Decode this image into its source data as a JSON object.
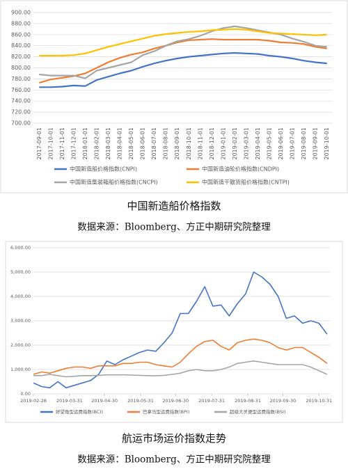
{
  "chart_data": [
    {
      "type": "line",
      "caption": "中国新造船价格指数",
      "source": "数据来源：Bloomberg、方正中期研究院整理",
      "categories": [
        "2017-09-01",
        "2017-10-01",
        "2017-11-01",
        "2017-12-01",
        "2018-01-01",
        "2018-02-01",
        "2018-03-01",
        "2018-04-01",
        "2018-05-01",
        "2018-06-01",
        "2018-07-01",
        "2018-08-01",
        "2018-09-01",
        "2018-10-01",
        "2018-11-01",
        "2018-12-01",
        "2019-01-01",
        "2019-02-01",
        "2019-03-01",
        "2019-04-01",
        "2019-05-01",
        "2019-06-01",
        "2019-07-01",
        "2019-08-01",
        "2019-09-01",
        "2019-10-01"
      ],
      "series": [
        {
          "name": "中国新造船价格指数(CNPI)",
          "color": "#4472c4",
          "values": [
            765,
            765,
            766,
            768,
            767,
            778,
            784,
            790,
            795,
            802,
            808,
            813,
            817,
            820,
            822,
            824,
            826,
            827,
            826,
            825,
            822,
            820,
            817,
            813,
            810,
            808
          ]
        },
        {
          "name": "中国新造油轮价格指数(CNDPI)",
          "color": "#ed7d31",
          "values": [
            773,
            779,
            782,
            785,
            790,
            800,
            810,
            818,
            824,
            828,
            835,
            840,
            846,
            850,
            851,
            852,
            851,
            851,
            851,
            851,
            849,
            846,
            845,
            843,
            838,
            835
          ]
        },
        {
          "name": "中国新造集装箱船价格指数(CNCPI)",
          "color": "#a5a5a5",
          "values": [
            788,
            786,
            786,
            786,
            781,
            795,
            800,
            805,
            810,
            823,
            830,
            840,
            848,
            852,
            858,
            866,
            872,
            875,
            872,
            868,
            864,
            860,
            853,
            847,
            840,
            838
          ]
        },
        {
          "name": "中国新造干散货船价格指数(CNTPI)",
          "color": "#ffc000",
          "values": [
            822,
            822,
            822,
            823,
            826,
            832,
            838,
            843,
            848,
            853,
            858,
            861,
            863,
            865,
            866,
            868,
            869,
            870,
            869,
            866,
            863,
            862,
            861,
            860,
            859,
            860
          ]
        }
      ],
      "ylim": [
        700,
        900
      ],
      "yticks": [
        {
          "value": 700,
          "label": "700.00"
        },
        {
          "value": 720,
          "label": "720.00"
        },
        {
          "value": 740,
          "label": "740.00"
        },
        {
          "value": 760,
          "label": "760.00"
        },
        {
          "value": 780,
          "label": "780.00"
        },
        {
          "value": 800,
          "label": "800.00"
        },
        {
          "value": 820,
          "label": "820.00"
        },
        {
          "value": 840,
          "label": "840.00"
        },
        {
          "value": 860,
          "label": "860.00"
        },
        {
          "value": 880,
          "label": "880.00"
        },
        {
          "value": 900,
          "label": "900.00"
        }
      ],
      "grid": true
    },
    {
      "type": "line",
      "caption": "航运市场运价指数走势",
      "source": "数据来源：Bloomberg、方正中期研究院整理",
      "x": [
        "2019-02-28",
        "2019-03-07",
        "2019-03-14",
        "2019-03-21",
        "2019-03-28",
        "2019-04-04",
        "2019-04-11",
        "2019-04-18",
        "2019-04-25",
        "2019-05-02",
        "2019-05-09",
        "2019-05-16",
        "2019-05-23",
        "2019-05-30",
        "2019-06-06",
        "2019-06-13",
        "2019-06-20",
        "2019-06-27",
        "2019-07-04",
        "2019-07-11",
        "2019-07-18",
        "2019-07-25",
        "2019-08-01",
        "2019-08-08",
        "2019-08-15",
        "2019-08-22",
        "2019-08-29",
        "2019-09-05",
        "2019-09-12",
        "2019-09-19",
        "2019-09-26",
        "2019-10-03",
        "2019-10-10",
        "2019-10-17",
        "2019-10-24",
        "2019-10-31",
        "2019-11-07"
      ],
      "series": [
        {
          "name": "好望角型运费指数(BCI)",
          "color": "#4472c4",
          "values": [
            450,
            300,
            250,
            500,
            250,
            350,
            450,
            550,
            800,
            1350,
            1200,
            1400,
            1550,
            1700,
            1800,
            1750,
            2100,
            2500,
            3300,
            3300,
            3800,
            4400,
            3600,
            3650,
            3200,
            3700,
            4100,
            5000,
            4800,
            4500,
            4000,
            3100,
            3200,
            2900,
            3000,
            2900,
            2450
          ]
        },
        {
          "name": "巴拿马型运费指数(BPI)",
          "color": "#ed7d31",
          "values": [
            800,
            900,
            850,
            950,
            1050,
            1100,
            1100,
            1050,
            1150,
            1150,
            1150,
            1250,
            1250,
            1300,
            1300,
            1200,
            1150,
            1100,
            1300,
            1650,
            1950,
            2150,
            2200,
            1950,
            1800,
            2100,
            2200,
            2250,
            2200,
            2100,
            1900,
            1800,
            1900,
            1900,
            1700,
            1500,
            1250
          ]
        },
        {
          "name": "超级大灵便型运费指数(BSI)",
          "color": "#a5a5a5",
          "values": [
            750,
            750,
            800,
            750,
            700,
            720,
            750,
            750,
            760,
            780,
            780,
            780,
            770,
            760,
            750,
            740,
            760,
            800,
            850,
            950,
            1000,
            950,
            950,
            1000,
            1100,
            1250,
            1300,
            1350,
            1300,
            1250,
            1200,
            1200,
            1200,
            1200,
            1100,
            950,
            800
          ]
        }
      ],
      "xlim": [
        "2019-02-28",
        "2019-11-10"
      ],
      "xticks": [
        "2019-02-28",
        "2019-03-31",
        "2019-04-30",
        "2019-05-31",
        "2019-06-30",
        "2019-07-31",
        "2019-08-31",
        "2019-09-30",
        "2019-10-31"
      ],
      "ylim": [
        0,
        6000
      ],
      "yticks": [
        {
          "value": 0,
          "label": "0.00"
        },
        {
          "value": 1000,
          "label": "1,000.00"
        },
        {
          "value": 2000,
          "label": "2,000.00"
        },
        {
          "value": 3000,
          "label": "3,000.00"
        },
        {
          "value": 4000,
          "label": "4,000.00"
        },
        {
          "value": 5000,
          "label": "5,000.00"
        },
        {
          "value": 6000,
          "label": "6,000.00"
        }
      ],
      "grid": true
    }
  ]
}
